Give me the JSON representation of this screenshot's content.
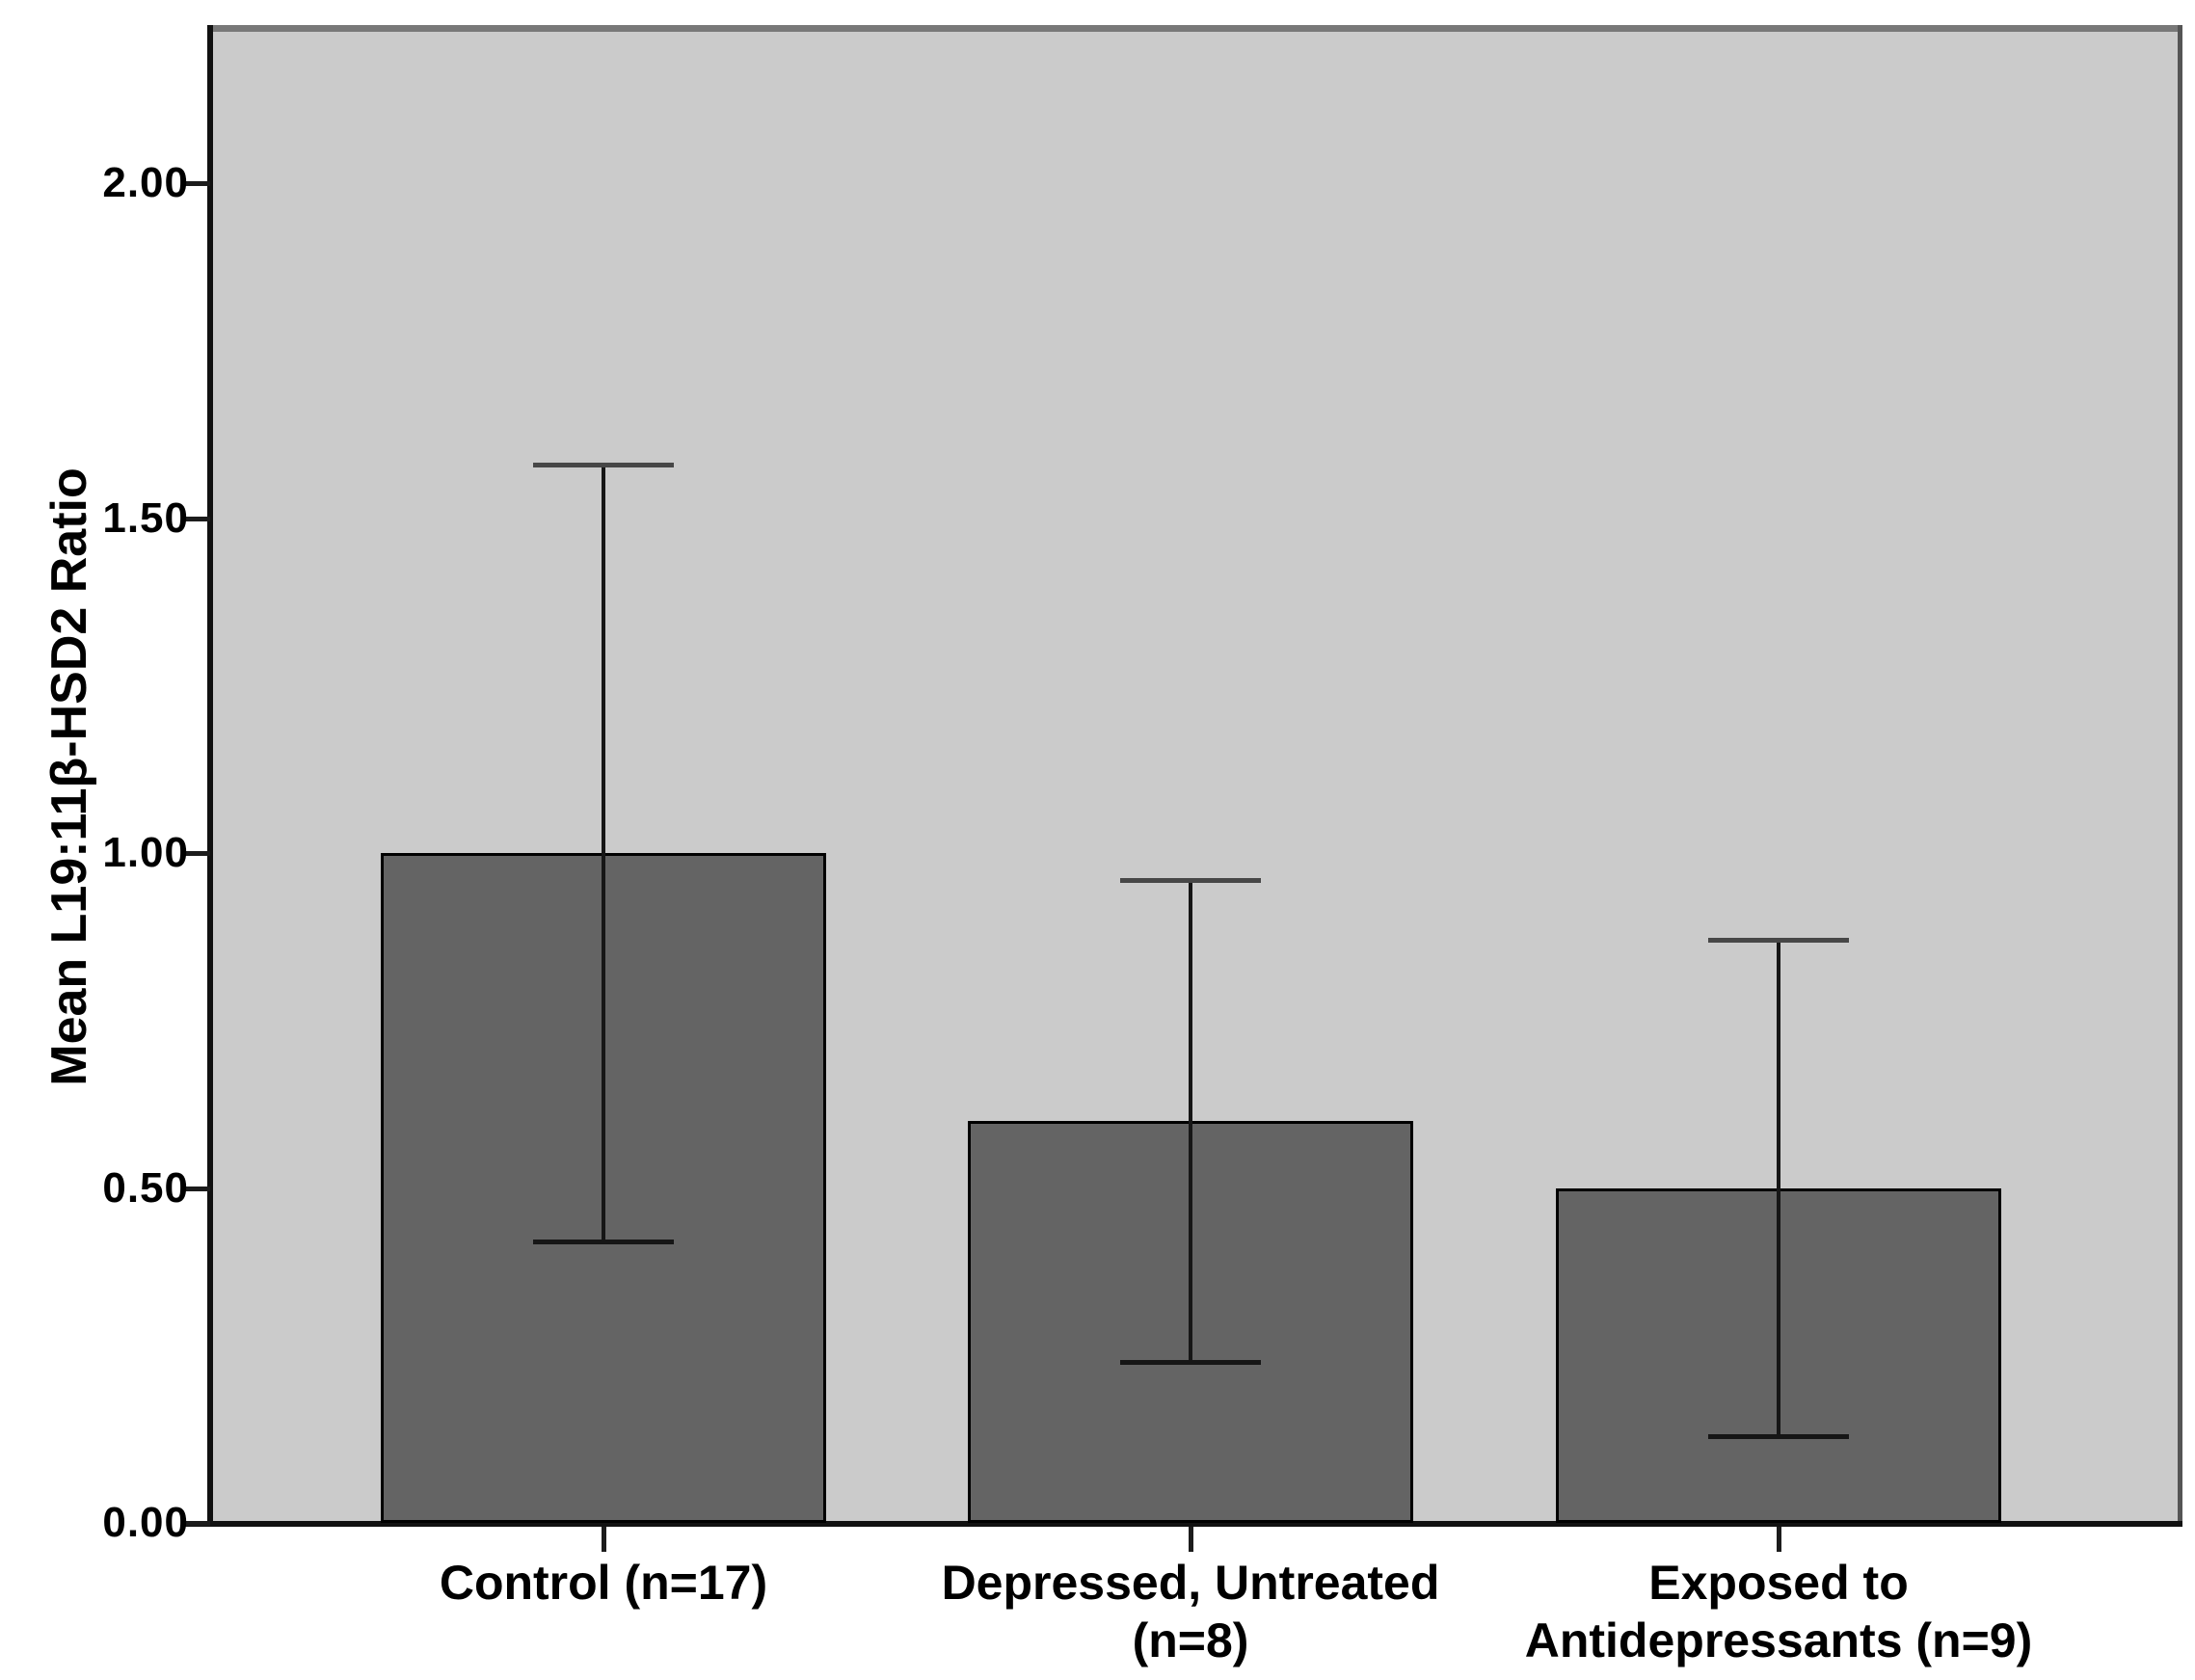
{
  "chart_data": {
    "type": "bar",
    "title": "",
    "xlabel": "",
    "ylabel": "Mean L19:11β-HSD2 Ratio",
    "ylim": [
      0.0,
      2.23
    ],
    "grid": "off",
    "legend": "none",
    "plot_background_color": "#cbcbcb",
    "bar_color": "#646464",
    "yticks": [
      0.0,
      0.5,
      1.0,
      1.5,
      2.0
    ],
    "ytick_labels": [
      "0.00",
      "0.50",
      "1.00",
      "1.50",
      "2.00"
    ],
    "categories": [
      "Control (n=17)",
      "Depressed, Untreated (n=8)",
      "Exposed to Antidepressants (n=9)"
    ],
    "category_label_lines": [
      [
        "Control (n=17)"
      ],
      [
        "Depressed, Untreated",
        "(n=8)"
      ],
      [
        "Exposed to",
        "Antidepressants (n=9)"
      ]
    ],
    "series": [
      {
        "name": "Mean L19:11β-HSD2 Ratio",
        "values": [
          1.0,
          0.6,
          0.5
        ]
      }
    ],
    "error_bars": [
      {
        "low": 0.42,
        "high": 1.58
      },
      {
        "low": 0.24,
        "high": 0.96
      },
      {
        "low": 0.13,
        "high": 0.87
      }
    ]
  }
}
